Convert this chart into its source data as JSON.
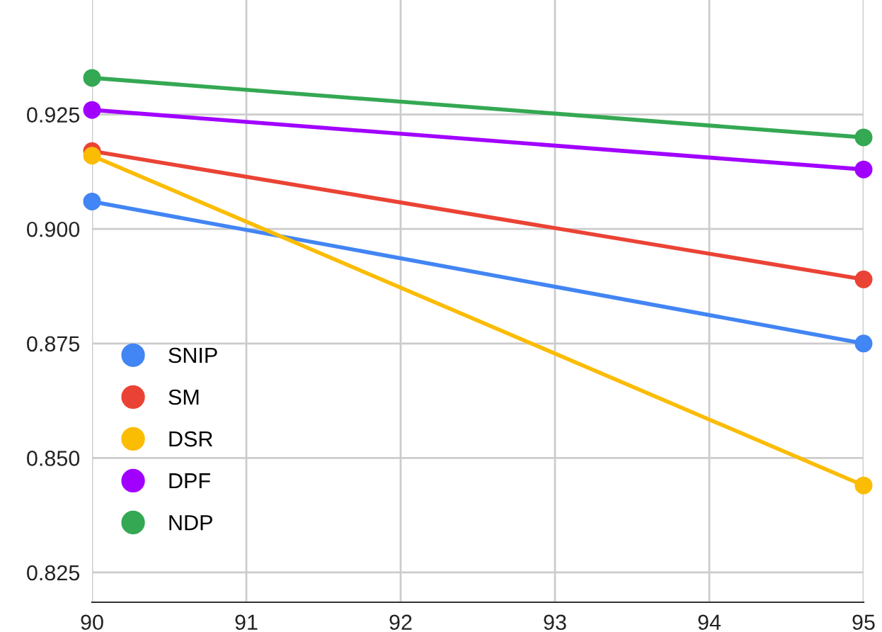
{
  "chart_data": {
    "type": "line",
    "x": [
      90,
      95
    ],
    "series": [
      {
        "name": "SNIP",
        "color": "#4285f4",
        "values": [
          0.906,
          0.875
        ]
      },
      {
        "name": "SM",
        "color": "#ea4335",
        "values": [
          0.917,
          0.889
        ]
      },
      {
        "name": "DSR",
        "color": "#fbbc04",
        "values": [
          0.916,
          0.844
        ]
      },
      {
        "name": "DPF",
        "color": "#a100ff",
        "values": [
          0.926,
          0.913
        ]
      },
      {
        "name": "NDP",
        "color": "#34a853",
        "values": [
          0.933,
          0.92
        ]
      }
    ],
    "xlim": [
      90,
      95
    ],
    "xticks": [
      90,
      91,
      92,
      93,
      94,
      95
    ],
    "ylim": [
      0.8185,
      0.95
    ],
    "yticks": [
      {
        "value": 0.825,
        "label": "0.825"
      },
      {
        "value": 0.85,
        "label": "0.850"
      },
      {
        "value": 0.875,
        "label": "0.875"
      },
      {
        "value": 0.9,
        "label": "0.900"
      },
      {
        "value": 0.925,
        "label": "0.925"
      }
    ],
    "grid": true,
    "legend": "bottom left",
    "marker": "circle",
    "line_style": "solid"
  }
}
